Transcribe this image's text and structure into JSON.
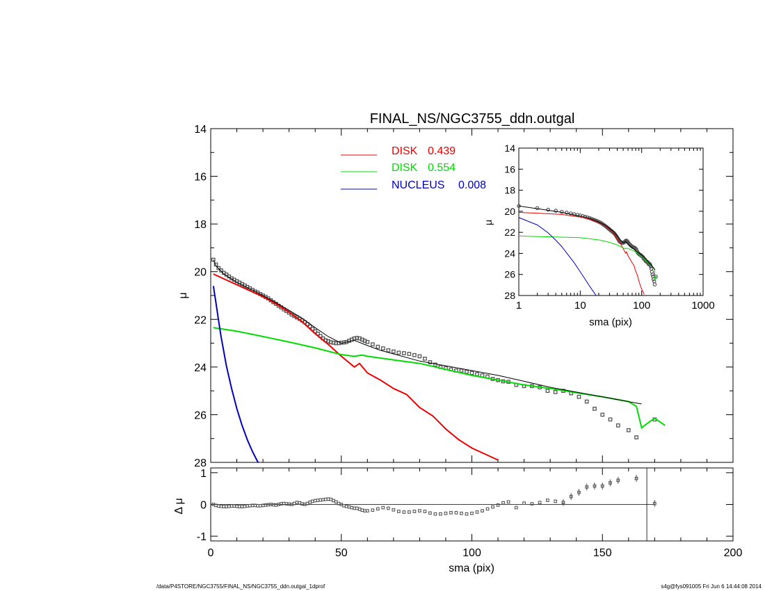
{
  "title": "FINAL_NS/NGC3755_ddn.outgal",
  "footer": {
    "left": "/data/P4STORE/NGC3755/FINAL_NS/NGC3755_ddn.outgal_1dprof",
    "right": "s4g@fys091005  Fri Jun  6 14:44:08 2014"
  },
  "colors": {
    "disk1": "#ee0000",
    "disk2": "#00dd00",
    "nucleus": "#0000bb",
    "model": "#000000",
    "points": "#555555"
  },
  "chart_data": [
    {
      "id": "main",
      "type": "line",
      "xlabel": "",
      "ylabel": "μ",
      "xlim": [
        0,
        200
      ],
      "ylim": [
        28,
        14
      ],
      "x_ticks": [
        0,
        50,
        100,
        150,
        200
      ],
      "y_ticks": [
        14,
        16,
        18,
        20,
        22,
        24,
        26,
        28
      ],
      "legend": [
        {
          "label": "DISK",
          "value": "0.439",
          "color_key": "disk1"
        },
        {
          "label": "DISK",
          "value": "0.554",
          "color_key": "disk2"
        },
        {
          "label": "NUCLEUS",
          "value": "0.008",
          "color_key": "nucleus"
        }
      ],
      "series": [
        {
          "color_key": "disk1",
          "x": [
            1,
            5,
            10,
            15,
            20,
            25,
            30,
            35,
            40,
            45,
            50,
            55,
            57,
            60,
            65,
            70,
            75,
            80,
            85,
            90,
            95,
            100,
            105,
            110
          ],
          "y": [
            20.1,
            20.3,
            20.55,
            20.8,
            21.05,
            21.35,
            21.7,
            22.1,
            22.6,
            23.05,
            23.55,
            24.0,
            23.85,
            24.25,
            24.55,
            24.9,
            25.15,
            25.7,
            26.05,
            26.6,
            27.05,
            27.4,
            27.65,
            27.9
          ]
        },
        {
          "color_key": "disk2",
          "x": [
            1,
            10,
            20,
            30,
            40,
            50,
            55,
            58,
            60,
            70,
            80,
            90,
            100,
            110,
            120,
            130,
            140,
            150,
            160,
            163,
            165,
            168,
            170,
            174
          ],
          "y": [
            22.35,
            22.5,
            22.72,
            22.95,
            23.2,
            23.48,
            23.55,
            23.5,
            23.55,
            23.7,
            23.85,
            24.1,
            24.35,
            24.55,
            24.75,
            24.9,
            25.08,
            25.25,
            25.45,
            25.65,
            26.55,
            26.3,
            26.15,
            26.45
          ]
        },
        {
          "color_key": "nucleus",
          "x": [
            1,
            2,
            3,
            4,
            5,
            6,
            8,
            10,
            12,
            14,
            16,
            18,
            19
          ],
          "y": [
            20.6,
            21.3,
            22.05,
            22.75,
            23.35,
            23.95,
            24.9,
            25.75,
            26.45,
            27.05,
            27.55,
            27.98,
            28.05
          ]
        },
        {
          "color_key": "model",
          "x": [
            1,
            2,
            5,
            10,
            15,
            20,
            25,
            30,
            35,
            40,
            45,
            50,
            55,
            60,
            65,
            70,
            80,
            90,
            100,
            110,
            120,
            130,
            140,
            150,
            160,
            165
          ],
          "y": [
            19.5,
            19.75,
            20.1,
            20.45,
            20.72,
            21.0,
            21.3,
            21.62,
            21.95,
            22.35,
            22.72,
            23.0,
            22.88,
            23.1,
            23.3,
            23.45,
            23.75,
            23.95,
            24.15,
            24.35,
            24.6,
            24.85,
            25.05,
            25.25,
            25.45,
            25.55
          ]
        }
      ],
      "points": {
        "x": [
          1,
          2,
          3,
          4,
          5,
          6,
          7,
          8,
          9,
          10,
          11,
          12,
          13,
          14,
          15,
          16,
          17,
          18,
          19,
          20,
          21,
          22,
          23,
          24,
          25,
          26,
          27,
          28,
          29,
          30,
          31,
          32,
          33,
          34,
          35,
          36,
          37,
          38,
          39,
          40,
          41,
          42,
          43,
          44,
          45,
          46,
          47,
          48,
          49,
          50,
          51,
          52,
          53,
          54,
          55,
          56,
          57,
          58,
          59,
          60,
          62,
          64,
          66,
          68,
          70,
          72,
          74,
          76,
          78,
          80,
          82,
          84,
          86,
          88,
          90,
          92,
          94,
          96,
          98,
          100,
          102,
          104,
          106,
          108,
          110,
          112,
          114,
          117,
          120,
          123,
          126,
          129,
          132,
          135,
          138,
          141,
          144,
          147,
          150,
          153,
          156,
          160,
          163,
          170
        ],
        "y": [
          19.5,
          19.7,
          19.85,
          19.95,
          20.05,
          20.12,
          20.2,
          20.28,
          20.34,
          20.4,
          20.46,
          20.52,
          20.58,
          20.64,
          20.7,
          20.77,
          20.83,
          20.88,
          20.94,
          21.0,
          21.06,
          21.12,
          21.2,
          21.28,
          21.35,
          21.43,
          21.5,
          21.58,
          21.65,
          21.72,
          21.8,
          21.86,
          21.92,
          21.98,
          22.05,
          22.12,
          22.2,
          22.3,
          22.4,
          22.5,
          22.6,
          22.7,
          22.8,
          22.88,
          22.92,
          22.96,
          22.98,
          23.0,
          23.0,
          22.98,
          22.97,
          22.95,
          22.9,
          22.85,
          22.8,
          22.78,
          22.8,
          22.85,
          22.9,
          22.95,
          23.05,
          23.15,
          23.22,
          23.3,
          23.35,
          23.4,
          23.42,
          23.45,
          23.5,
          23.55,
          23.65,
          23.8,
          23.9,
          24.0,
          24.05,
          24.1,
          24.15,
          24.15,
          24.2,
          24.25,
          24.3,
          24.35,
          24.4,
          24.5,
          24.55,
          24.6,
          24.62,
          24.75,
          24.8,
          24.8,
          24.85,
          25.0,
          25.05,
          25.0,
          25.1,
          25.25,
          25.45,
          25.75,
          26.0,
          26.2,
          26.45,
          26.65,
          26.95,
          26.2
        ]
      }
    },
    {
      "id": "inset",
      "type": "line",
      "xlabel": "sma (pix)",
      "ylabel": "μ",
      "xscale": "log",
      "xlim": [
        1,
        1000
      ],
      "ylim": [
        28,
        14
      ],
      "x_ticks": [
        1,
        10,
        100,
        1000
      ],
      "y_ticks": [
        14,
        16,
        18,
        20,
        22,
        24,
        26,
        28
      ]
    },
    {
      "id": "residual",
      "type": "scatter",
      "xlabel": "sma (pix)",
      "ylabel": "Δ μ",
      "xlim": [
        0,
        200
      ],
      "ylim": [
        -1.15,
        1.15
      ],
      "x_ticks": [
        0,
        50,
        100,
        150,
        200
      ],
      "y_ticks": [
        -1,
        0,
        1
      ],
      "vline": 167,
      "points": {
        "x": [
          1,
          2,
          3,
          4,
          5,
          6,
          7,
          8,
          9,
          10,
          11,
          12,
          13,
          14,
          15,
          16,
          17,
          18,
          19,
          20,
          21,
          22,
          23,
          24,
          25,
          26,
          27,
          28,
          29,
          30,
          31,
          32,
          33,
          34,
          35,
          36,
          37,
          38,
          39,
          40,
          41,
          42,
          43,
          44,
          45,
          46,
          47,
          48,
          49,
          50,
          51,
          52,
          53,
          54,
          55,
          56,
          57,
          58,
          59,
          60,
          62,
          64,
          66,
          68,
          70,
          72,
          74,
          76,
          78,
          80,
          82,
          84,
          86,
          88,
          90,
          92,
          94,
          96,
          98,
          100,
          102,
          104,
          106,
          108,
          110,
          112,
          114,
          117,
          120,
          123,
          126,
          129,
          132,
          135,
          138,
          141,
          144,
          147,
          150,
          153,
          156,
          163,
          170
        ],
        "y": [
          0.0,
          -0.03,
          -0.05,
          -0.06,
          -0.07,
          -0.07,
          -0.06,
          -0.05,
          -0.05,
          -0.06,
          -0.07,
          -0.07,
          -0.06,
          -0.05,
          -0.04,
          -0.03,
          -0.03,
          -0.04,
          -0.04,
          -0.03,
          -0.02,
          -0.01,
          0.0,
          -0.01,
          -0.02,
          0.0,
          0.02,
          0.03,
          0.02,
          0.01,
          0.0,
          0.03,
          0.06,
          0.05,
          0.02,
          0.0,
          0.03,
          0.07,
          0.1,
          0.12,
          0.13,
          0.14,
          0.15,
          0.16,
          0.17,
          0.16,
          0.12,
          0.08,
          0.03,
          0.0,
          -0.04,
          -0.06,
          -0.08,
          -0.1,
          -0.12,
          -0.12,
          -0.15,
          -0.18,
          -0.2,
          -0.2,
          -0.18,
          -0.14,
          -0.1,
          -0.12,
          -0.17,
          -0.22,
          -0.24,
          -0.24,
          -0.22,
          -0.2,
          -0.22,
          -0.27,
          -0.3,
          -0.3,
          -0.28,
          -0.26,
          -0.26,
          -0.28,
          -0.3,
          -0.28,
          -0.24,
          -0.2,
          -0.14,
          -0.08,
          -0.02,
          0.05,
          0.08,
          -0.1,
          0.04,
          0.02,
          0.06,
          0.13,
          0.1,
          0.06,
          0.25,
          0.38,
          0.55,
          0.58,
          0.58,
          0.68,
          0.76,
          0.82,
          0.03
        ]
      }
    }
  ]
}
